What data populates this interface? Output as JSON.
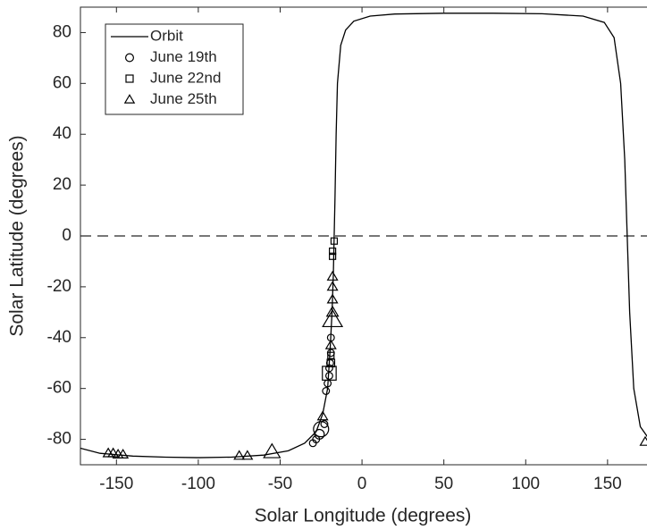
{
  "chart_data": {
    "type": "line",
    "xlabel": "Solar Longitude (degrees)",
    "ylabel": "Solar Latitude (degrees)",
    "xlim": [
      -172,
      173
    ],
    "ylim": [
      -90,
      90
    ],
    "xticks": [
      -150,
      -100,
      -50,
      0,
      50,
      100,
      150
    ],
    "yticks": [
      -80,
      -60,
      -40,
      -20,
      0,
      20,
      40,
      60,
      80
    ],
    "hline": 0,
    "legend": "upper-left",
    "series": [
      {
        "name": "Orbit",
        "color": "#000000",
        "marker": "none",
        "x": [
          -172,
          -160,
          -140,
          -120,
          -100,
          -80,
          -60,
          -45,
          -35,
          -28,
          -24,
          -21,
          -19.5,
          -18.3,
          -17.5,
          -17,
          -16.5,
          -15.8,
          -15,
          -13,
          -10,
          -5,
          5,
          20,
          50,
          80,
          110,
          135,
          148,
          154,
          158,
          160.5,
          162,
          163.5,
          166,
          170,
          176
        ],
        "y": [
          -83.5,
          -85.5,
          -86.6,
          -87.0,
          -87.2,
          -87.0,
          -86.2,
          -84.5,
          -81.5,
          -77,
          -70,
          -60,
          -45,
          -30,
          -15,
          0,
          15,
          40,
          60,
          75,
          81,
          84.5,
          86.5,
          87.3,
          87.6,
          87.6,
          87.4,
          86.5,
          84,
          78,
          60,
          30,
          0,
          -30,
          -60,
          -75,
          -80.5
        ]
      },
      {
        "name": "June 19th",
        "color": "#000000",
        "marker": "circle",
        "x": [
          -30,
          -28,
          -26,
          -25,
          -23,
          -22,
          -21,
          -20,
          -19.5,
          -19,
          -19,
          -20
        ],
        "y": [
          -81.5,
          -80,
          -78,
          -76,
          -74,
          -61,
          -58,
          -55,
          -50,
          -46,
          -40,
          -52
        ],
        "sizes": [
          5,
          5,
          7,
          11,
          5,
          5,
          5,
          5,
          5,
          5,
          5,
          5
        ]
      },
      {
        "name": "June 22nd",
        "color": "#000000",
        "marker": "square",
        "x": [
          -20,
          -19,
          -18,
          -17,
          -18,
          -19
        ],
        "y": [
          -54,
          -50,
          -8,
          -2,
          -6,
          -47
        ],
        "sizes": [
          11,
          6,
          5,
          5,
          5,
          5
        ]
      },
      {
        "name": "June 25th",
        "color": "#000000",
        "marker": "triangle",
        "x": [
          -155,
          -152,
          -149,
          -146,
          -75,
          -70,
          -55,
          -24,
          -19,
          -18,
          -18,
          -18,
          -18,
          -18,
          173
        ],
        "y": [
          -85.5,
          -85.5,
          -86,
          -86,
          -86.5,
          -86.5,
          -85,
          -71,
          -43,
          -33,
          -30,
          -20,
          -16,
          -25,
          -81
        ],
        "sizes": [
          6,
          6,
          6,
          6,
          6,
          6,
          10,
          6,
          6,
          12,
          7,
          6,
          6,
          6,
          6
        ]
      }
    ]
  }
}
